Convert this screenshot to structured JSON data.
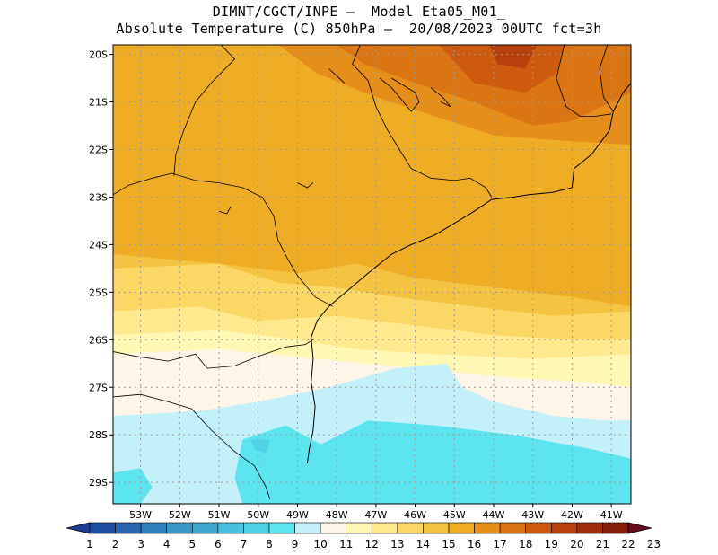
{
  "header": {
    "title_line1": "DIMNT/CGCT/INPE –  Model Eta05_M01_",
    "title_line2": "Absolute Temperature (C) 850hPa –  20/08/2023 00UTC fct=3h"
  },
  "map": {
    "lon_range": [
      -53.7,
      -40.5
    ],
    "lat_range": [
      -29.45,
      -19.8
    ],
    "lon_ticks": [
      {
        "value": -53,
        "label": "53W"
      },
      {
        "value": -52,
        "label": "52W"
      },
      {
        "value": -51,
        "label": "51W"
      },
      {
        "value": -50,
        "label": "50W"
      },
      {
        "value": -49,
        "label": "49W"
      },
      {
        "value": -48,
        "label": "48W"
      },
      {
        "value": -47,
        "label": "47W"
      },
      {
        "value": -46,
        "label": "46W"
      },
      {
        "value": -45,
        "label": "45W"
      },
      {
        "value": -44,
        "label": "44W"
      },
      {
        "value": -43,
        "label": "43W"
      },
      {
        "value": -42,
        "label": "42W"
      },
      {
        "value": -41,
        "label": "41W"
      }
    ],
    "lat_ticks": [
      {
        "value": -20,
        "label": "20S"
      },
      {
        "value": -21,
        "label": "21S"
      },
      {
        "value": -22,
        "label": "22S"
      },
      {
        "value": -23,
        "label": "23S"
      },
      {
        "value": -24,
        "label": "24S"
      },
      {
        "value": -25,
        "label": "25S"
      },
      {
        "value": -26,
        "label": "26S"
      },
      {
        "value": -27,
        "label": "27S"
      },
      {
        "value": -28,
        "label": "28S"
      },
      {
        "value": -29,
        "label": "29S"
      }
    ],
    "temperature_regions": [
      {
        "level": 16,
        "points": [
          [
            -53.7,
            -19.8
          ],
          [
            -40.5,
            -19.8
          ],
          [
            -40.5,
            -25.3
          ],
          [
            -42,
            -25.1
          ],
          [
            -44,
            -24.9
          ],
          [
            -46,
            -24.7
          ],
          [
            -47.5,
            -24.4
          ],
          [
            -49,
            -24.6
          ],
          [
            -51,
            -24.4
          ],
          [
            -53.7,
            -24.2
          ]
        ]
      },
      {
        "level": 17,
        "points": [
          [
            -49.5,
            -19.8
          ],
          [
            -40.5,
            -19.8
          ],
          [
            -40.5,
            -21.9
          ],
          [
            -42.5,
            -21.8
          ],
          [
            -44,
            -21.7
          ],
          [
            -45.5,
            -21.3
          ],
          [
            -47,
            -20.9
          ],
          [
            -48.5,
            -20.4
          ]
        ]
      },
      {
        "level": 18,
        "points": [
          [
            -48,
            -19.8
          ],
          [
            -40.5,
            -19.8
          ],
          [
            -40.5,
            -20.8
          ],
          [
            -42,
            -21.4
          ],
          [
            -43,
            -21.5
          ],
          [
            -44.5,
            -21.0
          ],
          [
            -46,
            -20.6
          ],
          [
            -47.3,
            -20.2
          ]
        ]
      },
      {
        "level": 19,
        "points": [
          [
            -45.4,
            -19.8
          ],
          [
            -42.2,
            -19.8
          ],
          [
            -42.4,
            -20.4
          ],
          [
            -43.2,
            -20.8
          ],
          [
            -44.5,
            -20.6
          ]
        ]
      },
      {
        "level": 20,
        "points": [
          [
            -44.1,
            -19.8
          ],
          [
            -42.9,
            -19.8
          ],
          [
            -43.2,
            -20.3
          ],
          [
            -43.9,
            -20.2
          ]
        ]
      },
      {
        "level": 14,
        "points": [
          [
            -53.7,
            -24.5
          ],
          [
            -51,
            -24.4
          ],
          [
            -49.5,
            -24.8
          ],
          [
            -48,
            -24.9
          ],
          [
            -46.5,
            -25.1
          ],
          [
            -44.5,
            -25.3
          ],
          [
            -42.5,
            -25.5
          ],
          [
            -40.5,
            -25.4
          ],
          [
            -40.5,
            -26.4
          ],
          [
            -53.7,
            -26.4
          ]
        ]
      },
      {
        "level": 13,
        "points": [
          [
            -53.7,
            -25.4
          ],
          [
            -51.5,
            -25.3
          ],
          [
            -50,
            -25.6
          ],
          [
            -48,
            -25.5
          ],
          [
            -46,
            -25.7
          ],
          [
            -44,
            -25.9
          ],
          [
            -42,
            -26.0
          ],
          [
            -40.5,
            -26.0
          ],
          [
            -40.5,
            -26.6
          ],
          [
            -53.7,
            -26.6
          ]
        ]
      },
      {
        "level": 12,
        "points": [
          [
            -53.7,
            -25.9
          ],
          [
            -51,
            -25.8
          ],
          [
            -49,
            -26.0
          ],
          [
            -47.5,
            -26.2
          ],
          [
            -45.5,
            -26.3
          ],
          [
            -43,
            -26.4
          ],
          [
            -40.5,
            -26.3
          ],
          [
            -40.5,
            -27.0
          ],
          [
            -53.7,
            -27.0
          ]
        ]
      },
      {
        "level": 11,
        "points": [
          [
            -53.7,
            -26.3
          ],
          [
            -51,
            -26.2
          ],
          [
            -48.5,
            -26.4
          ],
          [
            -46,
            -26.6
          ],
          [
            -43.5,
            -26.8
          ],
          [
            -41.5,
            -26.9
          ],
          [
            -40.5,
            -27.0
          ],
          [
            -40.5,
            -29.45
          ],
          [
            -53.7,
            -29.45
          ]
        ]
      },
      {
        "level": 10,
        "points": [
          [
            -53.7,
            -27.6
          ],
          [
            -51.5,
            -27.5
          ],
          [
            -50,
            -27.3
          ],
          [
            -48.2,
            -27.0
          ],
          [
            -46.5,
            -26.6
          ],
          [
            -45.2,
            -26.5
          ],
          [
            -44.8,
            -27.0
          ],
          [
            -44,
            -27.3
          ],
          [
            -42.5,
            -27.6
          ],
          [
            -41.2,
            -27.7
          ],
          [
            -40.5,
            -27.7
          ],
          [
            -40.5,
            -29.45
          ],
          [
            -53.7,
            -29.45
          ]
        ]
      },
      {
        "level": 9,
        "points": [
          [
            -50.4,
            -28.1
          ],
          [
            -49.3,
            -27.8
          ],
          [
            -48.4,
            -28.2
          ],
          [
            -47.2,
            -27.7
          ],
          [
            -45.5,
            -27.8
          ],
          [
            -43.5,
            -28.0
          ],
          [
            -41.5,
            -28.3
          ],
          [
            -40.5,
            -28.5
          ],
          [
            -40.5,
            -29.45
          ],
          [
            -50.4,
            -29.45
          ],
          [
            -50.6,
            -28.9
          ]
        ]
      },
      {
        "level": 9,
        "points": [
          [
            -53.7,
            -28.8
          ],
          [
            -53,
            -28.7
          ],
          [
            -52.7,
            -29.1
          ],
          [
            -53.0,
            -29.45
          ],
          [
            -53.7,
            -29.45
          ]
        ]
      },
      {
        "level": 8,
        "points": [
          [
            -50.2,
            -28.1
          ],
          [
            -49.7,
            -28.1
          ],
          [
            -49.8,
            -28.4
          ],
          [
            -50.1,
            -28.3
          ]
        ]
      }
    ],
    "palette": [
      {
        "level": 1,
        "color": "#1f3b93"
      },
      {
        "level": 2,
        "color": "#1e4ea3"
      },
      {
        "level": 3,
        "color": "#2a66b0"
      },
      {
        "level": 4,
        "color": "#3181bd"
      },
      {
        "level": 5,
        "color": "#3896c6"
      },
      {
        "level": 6,
        "color": "#3ea8cf"
      },
      {
        "level": 7,
        "color": "#47bfde"
      },
      {
        "level": 8,
        "color": "#4fd3e8"
      },
      {
        "level": 9,
        "color": "#5ce5ef"
      },
      {
        "level": 10,
        "color": "#c4f0fa"
      },
      {
        "level": 11,
        "color": "#fdf5e8"
      },
      {
        "level": 12,
        "color": "#fff7b4"
      },
      {
        "level": 13,
        "color": "#fee98e"
      },
      {
        "level": 14,
        "color": "#fbd866"
      },
      {
        "level": 15,
        "color": "#f5c342"
      },
      {
        "level": 16,
        "color": "#efad25"
      },
      {
        "level": 17,
        "color": "#e58f1a"
      },
      {
        "level": 18,
        "color": "#db7413"
      },
      {
        "level": 19,
        "color": "#cd5a0f"
      },
      {
        "level": 20,
        "color": "#b8400c"
      },
      {
        "level": 21,
        "color": "#a02e0c"
      },
      {
        "level": 22,
        "color": "#86200c"
      },
      {
        "level": 23,
        "color": "#6b0a1e"
      }
    ],
    "coastline": [
      [
        -48.75,
        -28.6
      ],
      [
        -48.7,
        -28.3
      ],
      [
        -48.6,
        -27.9
      ],
      [
        -48.55,
        -27.4
      ],
      [
        -48.65,
        -26.9
      ],
      [
        -48.6,
        -26.4
      ],
      [
        -48.65,
        -25.95
      ],
      [
        -48.5,
        -25.6
      ],
      [
        -48.2,
        -25.3
      ],
      [
        -47.7,
        -24.95
      ],
      [
        -47.2,
        -24.6
      ],
      [
        -46.6,
        -24.2
      ],
      [
        -46.1,
        -24.0
      ],
      [
        -45.5,
        -23.8
      ],
      [
        -45.0,
        -23.55
      ],
      [
        -44.5,
        -23.3
      ],
      [
        -44.05,
        -23.05
      ],
      [
        -43.5,
        -23.0
      ],
      [
        -43.1,
        -22.95
      ],
      [
        -42.5,
        -22.9
      ],
      [
        -42.0,
        -22.8
      ],
      [
        -41.95,
        -22.4
      ],
      [
        -41.5,
        -22.1
      ],
      [
        -41.05,
        -21.6
      ],
      [
        -40.95,
        -21.2
      ],
      [
        -40.7,
        -20.8
      ],
      [
        -40.5,
        -20.6
      ]
    ],
    "borders": [
      [
        [
          -53.7,
          -22.95
        ],
        [
          -53.3,
          -22.75
        ],
        [
          -52.7,
          -22.6
        ],
        [
          -52.2,
          -22.5
        ],
        [
          -51.6,
          -22.65
        ],
        [
          -51.0,
          -22.7
        ],
        [
          -50.4,
          -22.8
        ],
        [
          -49.9,
          -23.0
        ],
        [
          -49.6,
          -23.4
        ],
        [
          -49.5,
          -23.9
        ],
        [
          -49.25,
          -24.3
        ],
        [
          -49.0,
          -24.65
        ],
        [
          -48.55,
          -25.1
        ],
        [
          -48.1,
          -25.3
        ]
      ],
      [
        [
          -53.7,
          -26.25
        ],
        [
          -53.1,
          -26.35
        ],
        [
          -52.3,
          -26.45
        ],
        [
          -51.6,
          -26.3
        ],
        [
          -51.3,
          -26.6
        ],
        [
          -50.6,
          -26.55
        ],
        [
          -50.0,
          -26.35
        ],
        [
          -49.3,
          -26.15
        ],
        [
          -48.8,
          -26.1
        ],
        [
          -48.6,
          -26.0
        ]
      ],
      [
        [
          -53.7,
          -27.2
        ],
        [
          -53.0,
          -27.15
        ],
        [
          -52.3,
          -27.3
        ],
        [
          -51.7,
          -27.45
        ],
        [
          -51.2,
          -27.9
        ],
        [
          -50.6,
          -28.35
        ],
        [
          -50.1,
          -28.65
        ],
        [
          -49.8,
          -29.1
        ],
        [
          -49.7,
          -29.35
        ]
      ],
      [
        [
          -50.95,
          -19.8
        ],
        [
          -50.6,
          -20.1
        ],
        [
          -51.2,
          -20.6
        ],
        [
          -51.6,
          -21.0
        ],
        [
          -51.9,
          -21.6
        ],
        [
          -52.1,
          -22.1
        ],
        [
          -52.15,
          -22.55
        ]
      ],
      [
        [
          -47.4,
          -19.8
        ],
        [
          -47.6,
          -20.2
        ],
        [
          -47.2,
          -20.55
        ],
        [
          -47.0,
          -21.1
        ],
        [
          -46.7,
          -21.6
        ],
        [
          -46.4,
          -22.0
        ],
        [
          -46.1,
          -22.4
        ],
        [
          -45.6,
          -22.6
        ],
        [
          -45.0,
          -22.65
        ],
        [
          -44.6,
          -22.6
        ],
        [
          -44.2,
          -22.8
        ],
        [
          -44.05,
          -23.0
        ]
      ],
      [
        [
          -42.2,
          -19.8
        ],
        [
          -42.4,
          -20.5
        ],
        [
          -42.15,
          -21.1
        ],
        [
          -41.8,
          -21.3
        ],
        [
          -41.4,
          -21.3
        ],
        [
          -41.0,
          -21.25
        ]
      ],
      [
        [
          -41.1,
          -19.8
        ],
        [
          -41.3,
          -20.3
        ],
        [
          -41.2,
          -20.9
        ],
        [
          -40.95,
          -21.2
        ]
      ]
    ],
    "lakes": [
      [
        [
          -46.9,
          -20.5
        ],
        [
          -46.6,
          -20.7
        ],
        [
          -46.3,
          -21.0
        ],
        [
          -46.1,
          -21.2
        ],
        [
          -45.9,
          -21.0
        ],
        [
          -46.0,
          -20.8
        ],
        [
          -46.3,
          -20.65
        ],
        [
          -46.6,
          -20.5
        ]
      ],
      [
        [
          -45.6,
          -20.7
        ],
        [
          -45.3,
          -20.9
        ],
        [
          -45.1,
          -21.1
        ],
        [
          -45.35,
          -21.0
        ]
      ],
      [
        [
          -48.2,
          -20.3
        ],
        [
          -48.0,
          -20.45
        ],
        [
          -47.8,
          -20.6
        ]
      ],
      [
        [
          -51.0,
          -23.3
        ],
        [
          -50.8,
          -23.35
        ],
        [
          -50.7,
          -23.2
        ]
      ],
      [
        [
          -49.0,
          -22.7
        ],
        [
          -48.75,
          -22.8
        ],
        [
          -48.6,
          -22.7
        ]
      ]
    ]
  },
  "colorbar": {
    "labels": [
      "1",
      "2",
      "3",
      "4",
      "5",
      "6",
      "7",
      "8",
      "9",
      "10",
      "11",
      "12",
      "13",
      "14",
      "15",
      "16",
      "17",
      "18",
      "19",
      "20",
      "21",
      "22",
      "23"
    ]
  }
}
